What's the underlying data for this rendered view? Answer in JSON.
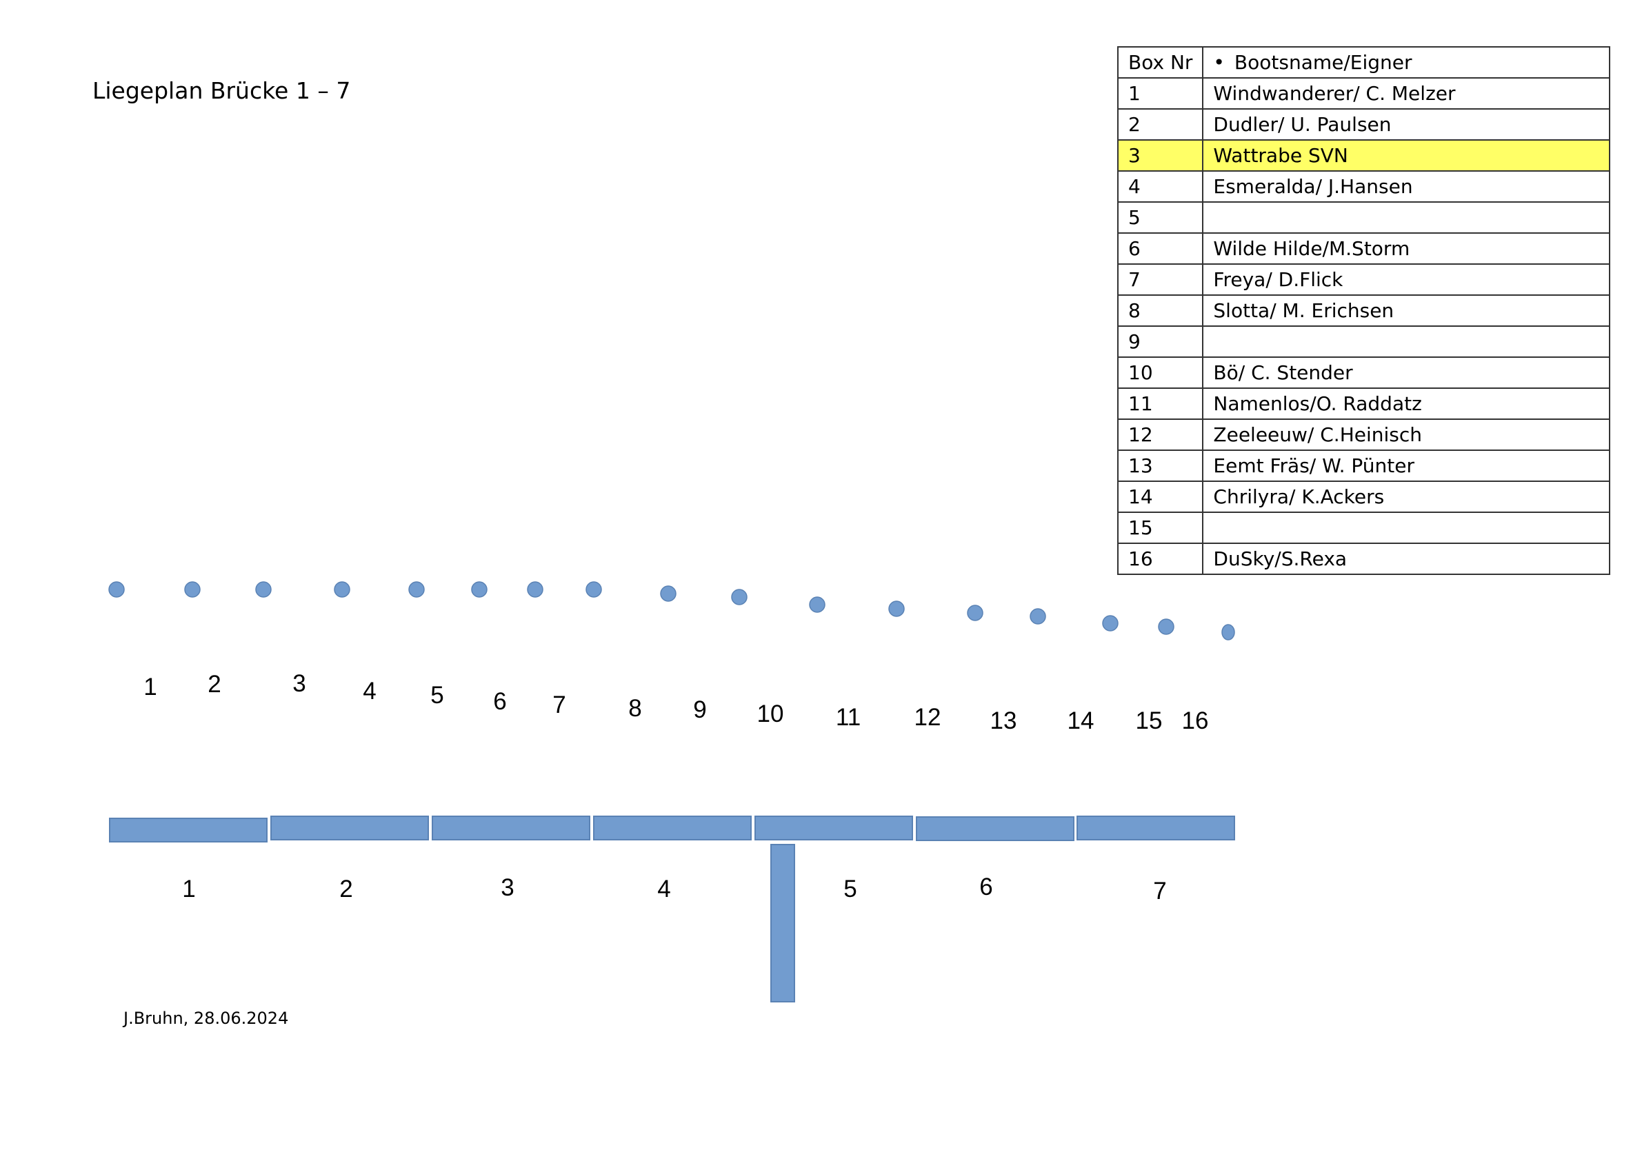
{
  "title": "Liegeplan Brücke 1 – 7",
  "footer": "J.Bruhn, 28.06.2024",
  "colors": {
    "dock": "#729ccf",
    "post": "#729ccf",
    "highlight": "#ffff66"
  },
  "table": {
    "col_nr": "Box Nr",
    "col_name": "Bootsname/Eigner",
    "rows": [
      {
        "nr": "1",
        "name": "Windwanderer/ C. Melzer"
      },
      {
        "nr": "2",
        "name": "Dudler/ U. Paulsen"
      },
      {
        "nr": "3",
        "name": "Wattrabe SVN",
        "highlight": true
      },
      {
        "nr": "4",
        "name": "Esmeralda/ J.Hansen"
      },
      {
        "nr": "5",
        "name": ""
      },
      {
        "nr": "6",
        "name": "Wilde Hilde/M.Storm"
      },
      {
        "nr": "7",
        "name": "Freya/ D.Flick"
      },
      {
        "nr": "8",
        "name": "Slotta/ M. Erichsen"
      },
      {
        "nr": "9",
        "name": ""
      },
      {
        "nr": "10",
        "name": "Bö/ C. Stender"
      },
      {
        "nr": "11",
        "name": "Namenlos/O. Raddatz"
      },
      {
        "nr": "12",
        "name": "Zeeleeuw/ C.Heinisch"
      },
      {
        "nr": "13",
        "name": "Eemt Fräs/ W. Pünter"
      },
      {
        "nr": "14",
        "name": "Chrilyra/ K.Ackers"
      },
      {
        "nr": "15",
        "name": ""
      },
      {
        "nr": "16",
        "name": "DuSky/S.Rexa"
      }
    ]
  },
  "box_labels": [
    "1",
    "2",
    "3",
    "4",
    "5",
    "6",
    "7",
    "8",
    "9",
    "10",
    "11",
    "12",
    "13",
    "14",
    "15",
    "16"
  ],
  "dock_labels": [
    "1",
    "2",
    "3",
    "4",
    "5",
    "6",
    "7"
  ]
}
